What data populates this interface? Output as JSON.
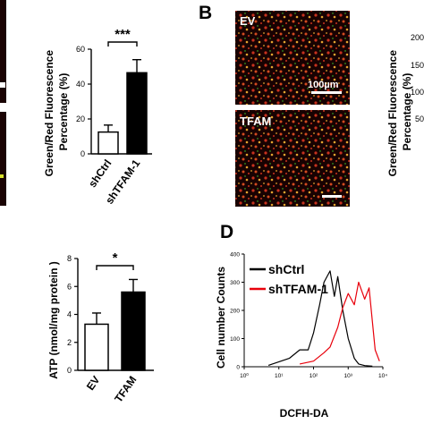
{
  "colors": {
    "black": "#000000",
    "white": "#ffffff",
    "shCtrl_line": "#000000",
    "shTFAM_line": "#e8000b",
    "micro_red": "#c8321e",
    "micro_orange": "#e4a330",
    "micro_green": "#3cdc32",
    "micro_bg": "#180202"
  },
  "panels": {
    "B": {
      "letter": "B",
      "images": [
        {
          "label": "EV",
          "scale_bar": "100µm"
        },
        {
          "label": "TFAM"
        }
      ]
    },
    "D": {
      "letter": "D"
    }
  },
  "chart_data": [
    {
      "type": "bar",
      "panel": "A (partial)",
      "categories": [
        "shCtrl",
        "shTFAM-1"
      ],
      "values": [
        12.5,
        46.5
      ],
      "errors": [
        4,
        7.5
      ],
      "bar_fill": [
        "white",
        "black"
      ],
      "ylabel": "Green/Red Fluorescence\nPercentage (%)",
      "ylim": [
        0,
        60
      ],
      "yticks": [
        "0",
        "20",
        "40",
        "60"
      ],
      "significance": "***"
    },
    {
      "type": "bar",
      "panel": "B (partial)",
      "ylabel": "Green/Red Fluorescence\nPercentage (%)",
      "yticks_visible": [
        "200",
        "150",
        "100",
        "50"
      ]
    },
    {
      "type": "bar",
      "panel": "C (partial)",
      "categories": [
        "EV",
        "TFAM"
      ],
      "values": [
        3.3,
        5.6
      ],
      "errors": [
        0.8,
        0.9
      ],
      "bar_fill": [
        "white",
        "black"
      ],
      "ylabel": "ATP (nmol/mg protein )",
      "ylim": [
        0,
        8
      ],
      "yticks": [
        "0",
        "2",
        "4",
        "6",
        "8"
      ],
      "significance": "*"
    },
    {
      "type": "line",
      "panel": "D",
      "xlabel": "DCFH-DA",
      "ylabel": "Cell number Counts",
      "xscale": "log",
      "xlim": [
        1,
        10000
      ],
      "ylim": [
        0,
        400
      ],
      "yticks": [
        "0",
        "100",
        "200",
        "300",
        "400"
      ],
      "xticks": [
        "10⁰",
        "10¹",
        "10²",
        "10³",
        "10⁴"
      ],
      "legend_position": "top-right",
      "series": [
        {
          "name": "shCtrl",
          "color": "black",
          "x": [
            5,
            20,
            40,
            70,
            100,
            150,
            200,
            300,
            400,
            500,
            700,
            1000,
            1500,
            2000,
            3000,
            5000
          ],
          "y": [
            5,
            30,
            60,
            60,
            120,
            220,
            300,
            340,
            250,
            320,
            200,
            100,
            30,
            10,
            4,
            2
          ]
        },
        {
          "name": "shTFAM-1",
          "color": "red",
          "x": [
            40,
            100,
            200,
            300,
            500,
            700,
            1000,
            1500,
            2000,
            3000,
            4000,
            5000,
            6000,
            8000
          ],
          "y": [
            10,
            20,
            50,
            70,
            140,
            210,
            260,
            220,
            300,
            240,
            280,
            160,
            60,
            20
          ]
        }
      ]
    }
  ]
}
